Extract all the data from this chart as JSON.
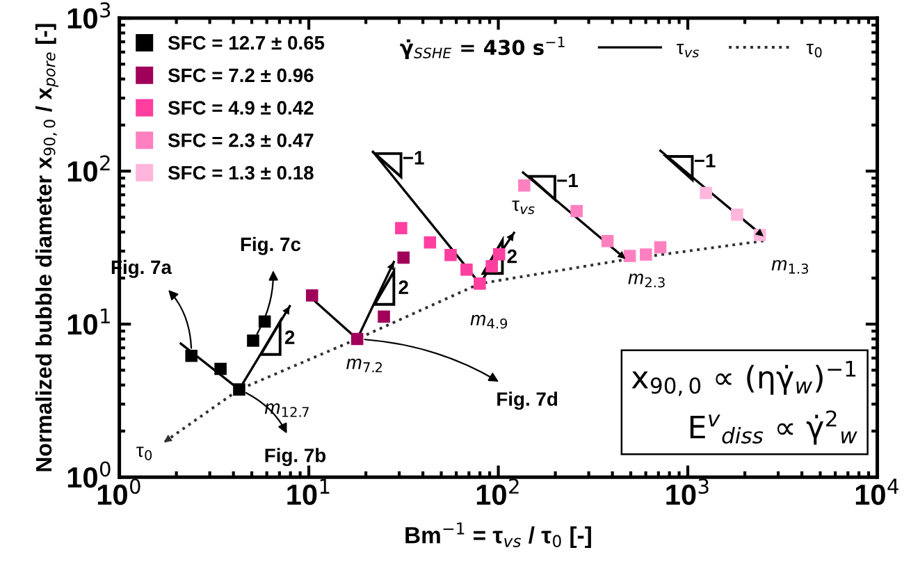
{
  "chart_data": {
    "type": "scatter",
    "xlabel": "Bm$^{−1}$ = τ$_{vs}$ / τ$_{0}$ [-]",
    "ylabel": "Normalized bubble diameter x$_{90,0}$ / x$_{pore}$ [-]",
    "log": "xy",
    "marker": "square",
    "legend": "top left",
    "grid": false,
    "xlim": [
      1,
      10000
    ],
    "ylim": [
      1,
      1000
    ],
    "xticks": [
      {
        "value": 1,
        "label": "10$^{0}$"
      },
      {
        "value": 10,
        "label": "10$^{1}$"
      },
      {
        "value": 100,
        "label": "10$^{2}$"
      },
      {
        "value": 1000,
        "label": "10$^{3}$"
      },
      {
        "value": 10000,
        "label": "10$^{4}$"
      }
    ],
    "yticks": [
      {
        "value": 1,
        "label": "10$^{0}$"
      },
      {
        "value": 10,
        "label": "10$^{1}$"
      },
      {
        "value": 100,
        "label": "10$^{2}$"
      },
      {
        "value": 1000,
        "label": "10$^{3}$"
      }
    ],
    "series": [
      {
        "name": "SFC = 12.7 ± 0.65",
        "color": "#000000",
        "x": [
          2.4,
          3.42,
          4.29,
          5.08,
          5.85
        ],
        "values": [
          6.2,
          5.1,
          3.74,
          7.8,
          10.4
        ]
      },
      {
        "name": "SFC = 7.2 ± 0.96",
        "color": "#a0005a",
        "x": [
          10.4,
          18,
          24.9,
          31.6
        ],
        "values": [
          15.4,
          8,
          11.2,
          27.2
        ]
      },
      {
        "name": "SFC = 4.9 ± 0.42",
        "color": "#ff3fa0",
        "x": [
          30.7,
          43.6,
          56,
          68,
          79.8,
          92.4,
          101
        ],
        "values": [
          42.4,
          34.2,
          28.3,
          22.7,
          18.4,
          23.9,
          28.6
        ]
      },
      {
        "name": "SFC = 2.3 ± 0.47",
        "color": "#ff80c0",
        "x": [
          137,
          259,
          377,
          494,
          601,
          716
        ],
        "values": [
          80.6,
          54.8,
          34.9,
          27.9,
          28.5,
          31.8
        ]
      },
      {
        "name": "SFC = 1.3 ± 0.18",
        "color": "#ffb6dc",
        "x": [
          1247,
          1820,
          2400
        ],
        "values": [
          72,
          51.9,
          38.2
        ]
      },
      {
        "name": "τ$_{vs}$",
        "type": "line",
        "line_style": "solid",
        "marker": "none",
        "color": "#000000",
        "x": [
          2.11,
          4.29,
          7.93,
          null,
          9.84,
          18,
          28.1,
          null,
          21.8,
          79.8,
          121,
          null,
          135,
          469,
          null,
          717,
          2510
        ],
        "values": [
          7.46,
          3.74,
          13.1,
          null,
          15.6,
          8,
          25.5,
          null,
          134,
          18.4,
          39.5,
          null,
          98,
          26.7,
          null,
          136,
          37.4
        ]
      },
      {
        "name": "τ$_{0}$",
        "type": "line",
        "line_style": "dotted",
        "marker": "none",
        "color": "#303030",
        "x": [
          2510,
          494,
          79.8,
          18,
          4.29,
          1.72
        ],
        "values": [
          35,
          26.7,
          18.4,
          8,
          3.74,
          1.69
        ]
      }
    ],
    "annotations": [
      "γ̇$_{SSHE}$ = 430 s$^{−1}$",
      "x$_{90,0}$ ∝ (ηγ̇$_{w}$)$^{−1}$",
      "E$^{v}$$_{diss}$ ∝ γ̇$^{2}$$_{w}$",
      {
        "text": "Fig. 7a",
        "x": 2.4,
        "y": 6.2
      },
      {
        "text": "Fig. 7b",
        "x": 4.29,
        "y": 3.74
      },
      {
        "text": "Fig. 7c",
        "x": 5.08,
        "y": 7.8
      },
      {
        "text": "Fig. 7d",
        "x": 18,
        "y": 8
      },
      {
        "text": "τ$_{0}$",
        "x": 1.72,
        "y": 1.69
      },
      {
        "text": "τ$_{vs}$",
        "x": 121,
        "y": 39.5
      },
      {
        "text": "m$_{12.7}$",
        "x": 4.29,
        "y": 3.74
      },
      {
        "text": "m$_{7.2}$",
        "x": 18,
        "y": 8
      },
      {
        "text": "m$_{4.9}$",
        "x": 79.8,
        "y": 18.4
      },
      {
        "text": "m$_{2.3}$",
        "x": 494,
        "y": 27.9
      },
      {
        "text": "m$_{1.3}$",
        "x": 2510,
        "y": 37.4
      },
      {
        "text": "2",
        "x": 7.93,
        "y": 13.1
      },
      {
        "text": "2",
        "x": 28.1,
        "y": 25.5
      },
      {
        "text": "2",
        "x": 121,
        "y": 39.5
      },
      {
        "text": "−1",
        "x": 21.8,
        "y": 134
      },
      {
        "text": "−1",
        "x": 135,
        "y": 98
      },
      {
        "text": "−1",
        "x": 717,
        "y": 136
      }
    ]
  }
}
